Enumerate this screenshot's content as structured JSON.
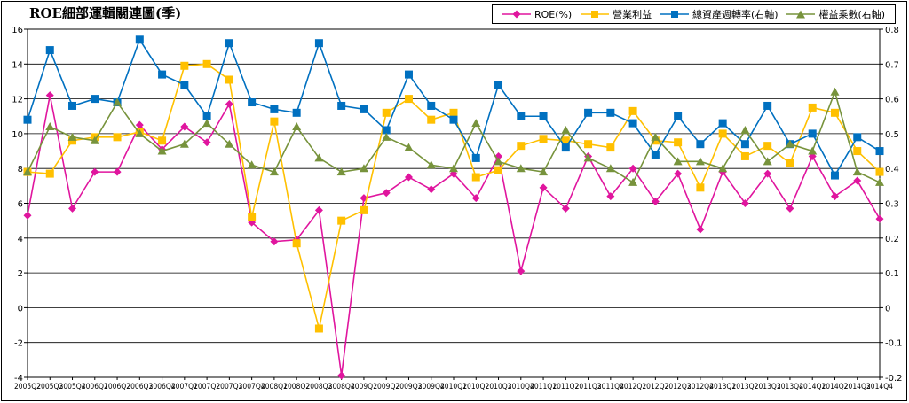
{
  "chart_data": {
    "type": "line",
    "title": "ROE細部運輯關連圖(季)",
    "categories": [
      "2005Q2",
      "2005Q3",
      "2005Q4",
      "2006Q1",
      "2006Q2",
      "2006Q3",
      "2006Q4",
      "2007Q1",
      "2007Q2",
      "2007Q3",
      "2007Q4",
      "2008Q1",
      "2008Q2",
      "2008Q3",
      "2008Q4",
      "2009Q1",
      "2009Q2",
      "2009Q3",
      "2009Q4",
      "2010Q1",
      "2010Q2",
      "2010Q3",
      "2010Q4",
      "2011Q1",
      "2011Q2",
      "2011Q3",
      "2011Q4",
      "2012Q1",
      "2012Q2",
      "2012Q3",
      "2012Q4",
      "2013Q1",
      "2013Q2",
      "2013Q3",
      "2013Q4",
      "2014Q1",
      "2014Q2",
      "2014Q3",
      "2014Q4"
    ],
    "y_left": {
      "min": -4,
      "max": 16,
      "ticks": [
        -4,
        -2,
        0,
        2,
        4,
        6,
        8,
        10,
        12,
        14,
        16
      ]
    },
    "y_right": {
      "min": -0.2,
      "max": 0.8,
      "ticks": [
        -0.2,
        -0.1,
        0,
        0.1,
        0.2,
        0.3,
        0.4,
        0.5,
        0.6,
        0.7,
        0.8
      ]
    },
    "grid": true,
    "legend_position": "top-right",
    "series": [
      {
        "name": "ROE(%)",
        "axis": "left",
        "color": "#E0159E",
        "marker": "diamond",
        "values": [
          5.3,
          12.2,
          5.7,
          7.8,
          7.8,
          10.5,
          9.1,
          10.4,
          9.5,
          11.7,
          4.9,
          3.8,
          3.9,
          5.6,
          -3.9,
          6.3,
          6.6,
          7.5,
          6.8,
          7.7,
          6.3,
          8.7,
          2.1,
          6.9,
          5.7,
          8.7,
          6.4,
          8.0,
          6.1,
          7.7,
          4.5,
          7.8,
          6.0,
          7.7,
          5.7,
          8.7,
          6.4,
          7.3,
          5.1
        ]
      },
      {
        "name": "營業利益",
        "axis": "left",
        "color": "#FFC000",
        "marker": "square",
        "values": [
          7.8,
          7.7,
          9.6,
          9.8,
          9.8,
          10.1,
          9.6,
          13.9,
          14.0,
          13.1,
          5.2,
          10.7,
          3.7,
          -1.2,
          5.0,
          5.6,
          11.2,
          12.0,
          10.8,
          11.2,
          7.5,
          7.9,
          9.3,
          9.7,
          9.6,
          9.4,
          9.2,
          11.3,
          9.6,
          9.5,
          6.9,
          10.0,
          8.7,
          9.3,
          8.3,
          11.5,
          11.2,
          9.0,
          7.8
        ]
      },
      {
        "name": "總資產週轉率(右軸)",
        "axis": "right",
        "color": "#0070C0",
        "marker": "square",
        "values": [
          0.54,
          0.74,
          0.58,
          0.6,
          0.59,
          0.77,
          0.67,
          0.64,
          0.55,
          0.76,
          0.59,
          0.57,
          0.56,
          0.76,
          0.58,
          0.57,
          0.51,
          0.67,
          0.58,
          0.54,
          0.43,
          0.64,
          0.55,
          0.55,
          0.46,
          0.56,
          0.56,
          0.53,
          0.44,
          0.55,
          0.47,
          0.53,
          0.47,
          0.58,
          0.47,
          0.5,
          0.38,
          0.49,
          0.45
        ]
      },
      {
        "name": "權益乘數(右軸)",
        "axis": "right",
        "color": "#77933C",
        "marker": "triangle",
        "values": [
          0.39,
          0.52,
          0.49,
          0.48,
          0.59,
          0.5,
          0.45,
          0.47,
          0.53,
          0.47,
          0.41,
          0.39,
          0.52,
          0.43,
          0.39,
          0.4,
          0.49,
          0.46,
          0.41,
          0.4,
          0.53,
          0.42,
          0.4,
          0.39,
          0.51,
          0.43,
          0.4,
          0.36,
          0.49,
          0.42,
          0.42,
          0.4,
          0.51,
          0.42,
          0.47,
          0.45,
          0.62,
          0.39,
          0.36
        ]
      }
    ]
  }
}
